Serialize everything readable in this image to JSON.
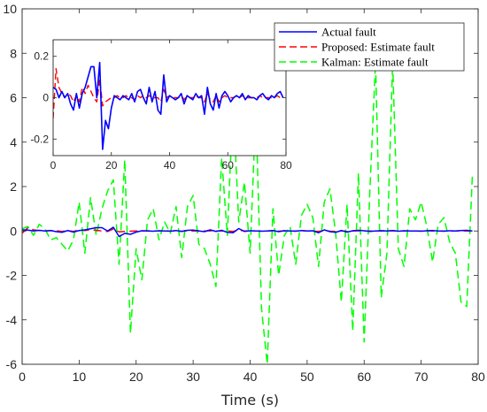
{
  "chart_data": [
    {
      "type": "line",
      "xlabel": "Time (s)",
      "ylabel": "",
      "xlim": [
        0,
        80
      ],
      "ylim": [
        -6,
        10
      ],
      "x_ticks": [
        "0",
        "10",
        "20",
        "30",
        "40",
        "50",
        "60",
        "70",
        "80"
      ],
      "y_ticks": [
        "10",
        "8",
        "6",
        "4",
        "2",
        "0",
        "-2",
        "-4",
        "-6"
      ],
      "grid": false,
      "legend_position": "top-right",
      "x": [
        0,
        1,
        2,
        3,
        4,
        5,
        6,
        7,
        8,
        9,
        10,
        11,
        12,
        13,
        14,
        15,
        16,
        17,
        18,
        19,
        20,
        21,
        22,
        23,
        24,
        25,
        26,
        27,
        28,
        29,
        30,
        31,
        32,
        33,
        34,
        35,
        36,
        37,
        38,
        39,
        40,
        41,
        42,
        43,
        44,
        45,
        46,
        47,
        48,
        49,
        50,
        51,
        52,
        53,
        54,
        55,
        56,
        57,
        58,
        59,
        60,
        61,
        62,
        63,
        64,
        65,
        66,
        67,
        68,
        69,
        70,
        71,
        72,
        73,
        74,
        75,
        76,
        77,
        78,
        79
      ],
      "series": [
        {
          "name": "Actual fault",
          "color": "#0000ff",
          "style": "solid",
          "values": [
            0.05,
            0.04,
            0.0,
            0.03,
            0.0,
            0.02,
            -0.03,
            -0.06,
            0.02,
            -0.05,
            0.02,
            0.05,
            0.1,
            0.15,
            0.15,
            0.0,
            0.17,
            -0.25,
            -0.11,
            -0.15,
            -0.05,
            0.01,
            0.0,
            -0.01,
            0.01,
            0.0,
            -0.01,
            0.02,
            -0.02,
            0.03,
            0.04,
            0.0,
            -0.03,
            0.05,
            -0.02,
            0.03,
            -0.06,
            -0.08,
            0.11,
            -0.02,
            0.01,
            0.0,
            -0.01,
            0.0,
            0.02,
            -0.03,
            0.01,
            0.0,
            -0.01,
            0.02,
            0.0,
            0.01,
            -0.08,
            0.05,
            -0.03,
            -0.06,
            0.02,
            -0.05,
            0.01,
            0.03,
            0.01,
            -0.02,
            0.0,
            0.01,
            0.0,
            0.02,
            -0.01,
            0.01,
            0.0,
            0.0,
            -0.01,
            0.01,
            0.02,
            0.0,
            -0.01,
            0.01,
            0.0,
            0.02,
            0.03,
            0.0
          ]
        },
        {
          "name": "Proposed: Estimate fault",
          "color": "#ff0000",
          "style": "dashed",
          "values": [
            -0.1,
            0.14,
            0.05,
            0.02,
            0.0,
            0.02,
            0.01,
            -0.02,
            0.01,
            -0.02,
            0.05,
            0.02,
            0.06,
            0.03,
            0.0,
            -0.02,
            0.09,
            -0.04,
            -0.02,
            -0.01,
            0.0,
            0.0,
            0.01,
            0.0,
            0.0,
            0.01,
            0.0,
            0.0,
            -0.01,
            0.01,
            0.0,
            0.01,
            0.0,
            0.01,
            0.0,
            0.0,
            0.0,
            -0.02,
            0.04,
            0.0,
            0.01,
            0.0,
            0.0,
            0.0,
            0.01,
            -0.01,
            0.01,
            0.0,
            0.0,
            0.01,
            0.0,
            0.0,
            -0.02,
            0.02,
            -0.01,
            -0.02,
            0.01,
            -0.02,
            0.0,
            0.01,
            0.0,
            0.0,
            0.0,
            0.01,
            0.0,
            0.01,
            0.0,
            0.0,
            0.0,
            0.0,
            0.0,
            0.01,
            0.0,
            0.0,
            0.0,
            0.0,
            0.0,
            0.01,
            0.0,
            0.0
          ]
        },
        {
          "name": "Kalman: Estimate fault",
          "color": "#00ff00",
          "style": "dashed",
          "values": [
            0.1,
            0.2,
            -0.2,
            0.3,
            0.1,
            -0.4,
            -0.3,
            -0.6,
            -0.9,
            -0.4,
            1.3,
            -1.0,
            1.5,
            -0.2,
            1.0,
            1.8,
            2.3,
            -1.5,
            3.2,
            -4.6,
            -0.8,
            -2.2,
            0.5,
            1.0,
            -0.4,
            0.4,
            -0.1,
            1.1,
            -1.2,
            1.1,
            1.6,
            -0.6,
            -0.8,
            -1.5,
            -2.5,
            3.3,
            -0.2,
            5.8,
            0.4,
            2.2,
            -1.0,
            5.5,
            -3.5,
            -6.0,
            1.0,
            -2.0,
            -0.2,
            0.2,
            -1.5,
            0.7,
            1.2,
            0.6,
            -1.6,
            1.3,
            1.9,
            -0.1,
            -3.2,
            1.2,
            -4.5,
            2.6,
            -5.0,
            1.8,
            7.6,
            -3.0,
            -1.0,
            7.6,
            -0.8,
            -1.6,
            1.0,
            0.5,
            1.3,
            0.2,
            -1.4,
            0.3,
            0.6,
            -0.5,
            -1.0,
            -3.2,
            -3.4,
            2.6
          ]
        }
      ]
    },
    {
      "type": "line",
      "role": "inset",
      "xlabel": "",
      "ylabel": "",
      "xlim": [
        0,
        80
      ],
      "ylim": [
        -0.28,
        0.28
      ],
      "x_ticks": [
        "0",
        "20",
        "40",
        "60",
        "80"
      ],
      "y_ticks": [
        "0.2",
        "0",
        "-0.2"
      ],
      "grid": false
    }
  ]
}
